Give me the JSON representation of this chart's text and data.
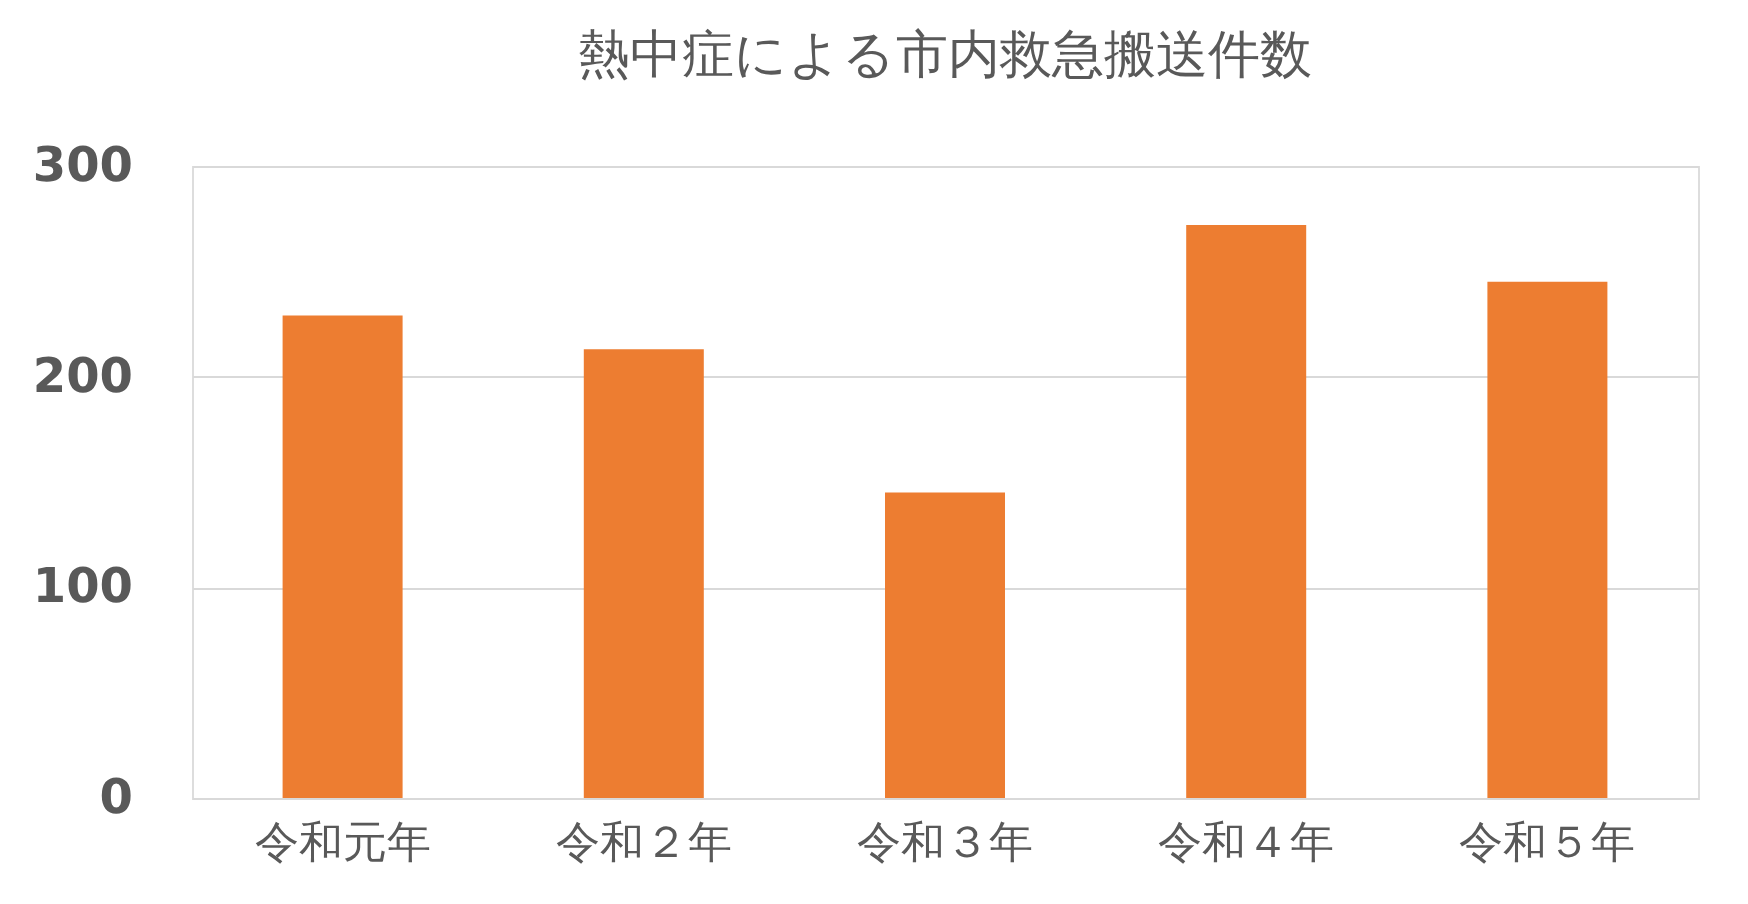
{
  "chart_data": {
    "type": "bar",
    "title": "熱中症による市内救急搬送件数",
    "categories": [
      "令和元年",
      "令和２年",
      "令和３年",
      "令和４年",
      "令和５年"
    ],
    "values": [
      229,
      213,
      145,
      272,
      245
    ],
    "color": "#ed7d31",
    "ylim": [
      0,
      300
    ],
    "yticks": [
      0,
      100,
      200,
      300
    ],
    "grid": "y"
  }
}
